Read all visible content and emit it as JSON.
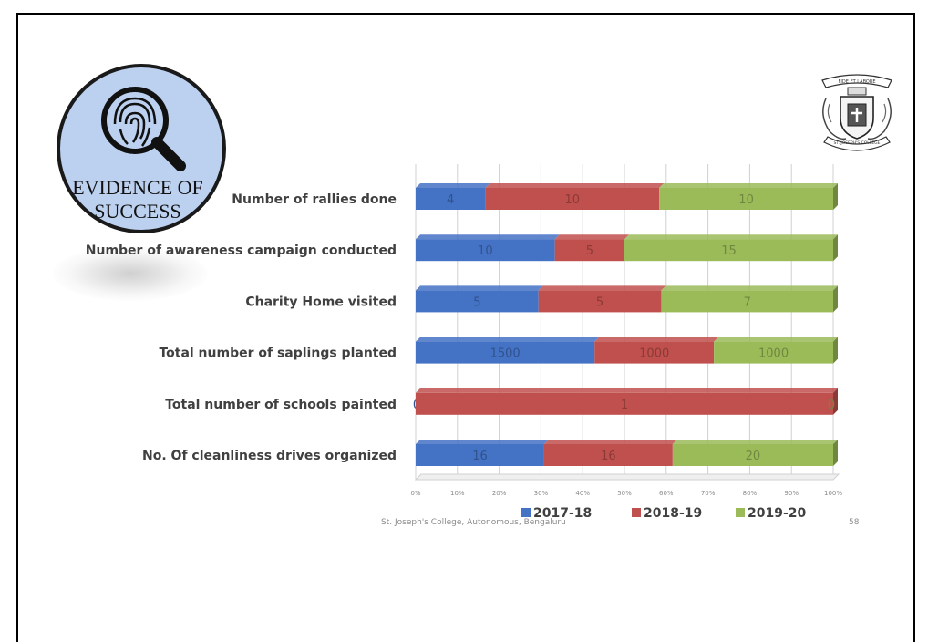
{
  "badge": {
    "line1": "EVIDENCE OF",
    "line2": "SUCCESS",
    "icon": "fingerprint-magnifier-icon"
  },
  "crest": {
    "icon": "college-crest-icon",
    "motto": "FIDE ET LABORE",
    "ribbon": "ST. JOSEPH'S COLLEGE"
  },
  "colors": {
    "2017-18": "#4472c4",
    "2018-19": "#c0504d",
    "2019-20": "#9bbb59"
  },
  "chart_data": {
    "type": "bar",
    "orientation": "horizontal",
    "stacking": "percent",
    "categories": [
      "Number of rallies done",
      "Number of awareness campaign conducted",
      "Charity Home visited",
      "Total number of saplings planted",
      "Total number of schools painted",
      "No. Of cleanliness drives organized"
    ],
    "series": [
      {
        "name": "2017-18",
        "values": [
          4,
          10,
          5,
          1500,
          0,
          16
        ]
      },
      {
        "name": "2018-19",
        "values": [
          10,
          5,
          5,
          1000,
          1,
          16
        ]
      },
      {
        "name": "2019-20",
        "values": [
          10,
          15,
          7,
          1000,
          0,
          20
        ]
      }
    ],
    "xticks": [
      "0%",
      "10%",
      "20%",
      "30%",
      "40%",
      "50%",
      "60%",
      "70%",
      "80%",
      "90%",
      "100%"
    ],
    "xlim": [
      0,
      100
    ],
    "grid": true,
    "legend_position": "bottom"
  },
  "footer": {
    "institution": "St. Joseph's College, Autonomous, Bengaluru",
    "page_number": "58"
  }
}
